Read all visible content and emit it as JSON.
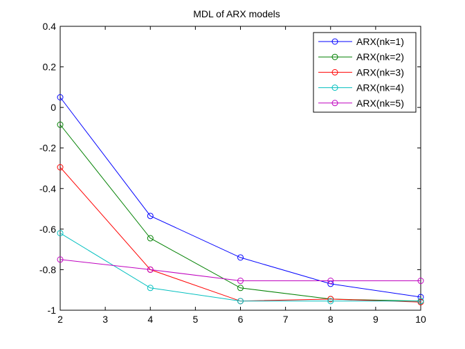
{
  "chart_data": {
    "type": "line",
    "title": "MDL of ARX models",
    "xlabel": "",
    "ylabel": "",
    "xlim": [
      2,
      10
    ],
    "ylim": [
      -1,
      0.4
    ],
    "x": [
      2,
      4,
      6,
      8,
      10
    ],
    "xticks": [
      "2",
      "3",
      "4",
      "5",
      "6",
      "7",
      "8",
      "9",
      "10"
    ],
    "yticks": [
      "0.4",
      "0.2",
      "0",
      "-0.2",
      "-0.4",
      "-0.6",
      "-0.8",
      "-1"
    ],
    "grid": false,
    "legend_position": "top-right",
    "marker": "circle",
    "series": [
      {
        "name": "ARX(nk=1)",
        "color": "#0000ff",
        "values": [
          0.05,
          -0.535,
          -0.74,
          -0.87,
          -0.935
        ]
      },
      {
        "name": "ARX(nk=2)",
        "color": "#008000",
        "values": [
          -0.085,
          -0.645,
          -0.89,
          -0.945,
          -0.955
        ]
      },
      {
        "name": "ARX(nk=3)",
        "color": "#ff0000",
        "values": [
          -0.295,
          -0.8,
          -0.955,
          -0.945,
          -0.96
        ]
      },
      {
        "name": "ARX(nk=4)",
        "color": "#00bfbf",
        "values": [
          -0.62,
          -0.89,
          -0.955,
          -0.955,
          -0.955
        ]
      },
      {
        "name": "ARX(nk=5)",
        "color": "#bf00bf",
        "values": [
          -0.75,
          -0.8,
          -0.855,
          -0.855,
          -0.855
        ]
      }
    ]
  }
}
